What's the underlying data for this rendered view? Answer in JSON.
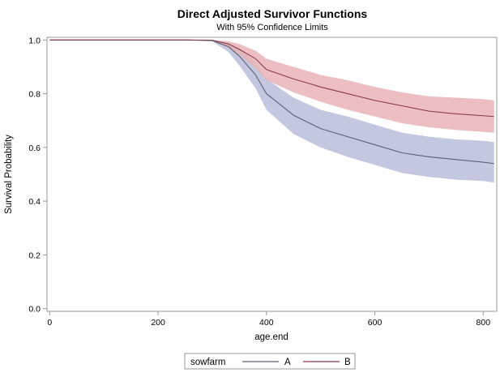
{
  "chart_data": {
    "type": "line",
    "title": "Direct Adjusted Survivor Functions",
    "subtitle": "With 95% Confidence Limits",
    "xlabel": "age.end",
    "ylabel": "Survival Probability",
    "xlim": [
      -5,
      825
    ],
    "ylim": [
      -0.01,
      1.01
    ],
    "xticks": [
      0,
      200,
      400,
      600,
      800
    ],
    "yticks": [
      0.0,
      0.2,
      0.4,
      0.6,
      0.8,
      1.0
    ],
    "grid": false,
    "legend": {
      "position": "bottom",
      "title": "sowfarm"
    },
    "series": [
      {
        "name": "A",
        "color": "#5b6276",
        "band_color": "#c0c4dd",
        "x": [
          0,
          250,
          300,
          330,
          350,
          380,
          400,
          450,
          500,
          550,
          600,
          650,
          700,
          750,
          800,
          820
        ],
        "y": [
          1.0,
          1.0,
          0.998,
          0.975,
          0.94,
          0.87,
          0.8,
          0.72,
          0.67,
          0.64,
          0.61,
          0.58,
          0.565,
          0.555,
          0.545,
          0.54
        ],
        "lower": [
          1.0,
          1.0,
          0.995,
          0.955,
          0.905,
          0.82,
          0.74,
          0.65,
          0.6,
          0.565,
          0.535,
          0.505,
          0.49,
          0.48,
          0.475,
          0.47
        ],
        "upper": [
          1.0,
          1.0,
          1.0,
          0.99,
          0.97,
          0.915,
          0.855,
          0.785,
          0.74,
          0.715,
          0.685,
          0.655,
          0.64,
          0.63,
          0.625,
          0.62
        ]
      },
      {
        "name": "B",
        "color": "#8b3b48",
        "band_color": "#e9b3b6",
        "x": [
          0,
          250,
          300,
          330,
          350,
          380,
          400,
          450,
          500,
          550,
          600,
          650,
          700,
          750,
          800,
          820
        ],
        "y": [
          1.0,
          1.0,
          0.999,
          0.985,
          0.965,
          0.93,
          0.89,
          0.855,
          0.825,
          0.8,
          0.775,
          0.755,
          0.735,
          0.725,
          0.718,
          0.715
        ],
        "lower": [
          1.0,
          1.0,
          0.997,
          0.97,
          0.945,
          0.895,
          0.85,
          0.805,
          0.77,
          0.74,
          0.715,
          0.69,
          0.675,
          0.665,
          0.658,
          0.655
        ],
        "upper": [
          1.0,
          1.0,
          1.0,
          0.995,
          0.985,
          0.96,
          0.93,
          0.9,
          0.87,
          0.85,
          0.825,
          0.805,
          0.79,
          0.785,
          0.78,
          0.775
        ]
      }
    ]
  }
}
